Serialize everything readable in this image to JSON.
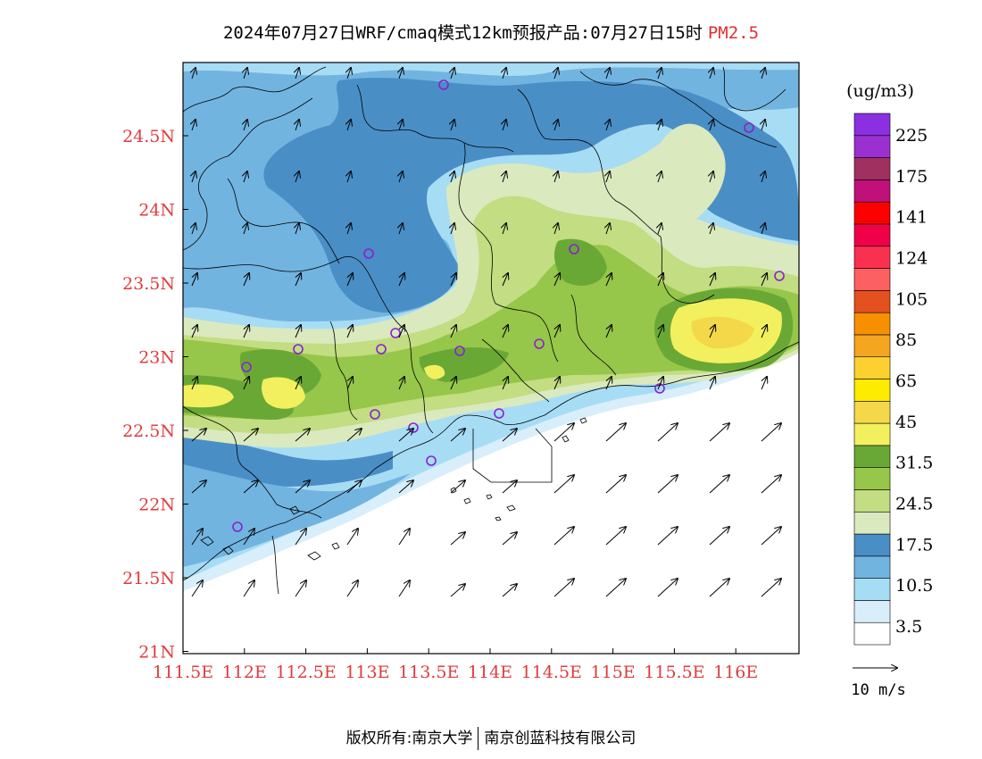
{
  "title": {
    "main": "2024年07月27日WRF/cmaq模式12km预报产品:07月27日15时",
    "species": "PM2.5"
  },
  "map": {
    "lat_labels": [
      "24.5N",
      "24N",
      "23.5N",
      "23N",
      "22.5N",
      "22N",
      "21.5N",
      "21N"
    ],
    "lon_labels": [
      "111.5E",
      "112E",
      "112.5E",
      "113E",
      "113.5E",
      "114E",
      "114.5E",
      "115E",
      "115.5E",
      "116E"
    ],
    "colors": {
      "c_lightblue": "#a7dcf5",
      "c_midblue": "#72b4e0",
      "c_darkblue": "#4a8ec6",
      "c_palegreen": "#dbe9bf",
      "c_lightgreen": "#c2dd82",
      "c_green": "#96c64a",
      "c_darkgreen": "#6aa836",
      "c_yellow": "#f2f05e",
      "c_gold": "#f4d84a"
    }
  },
  "legend": {
    "unit": "(ug/m3)",
    "labels": [
      "225",
      "175",
      "141",
      "124",
      "105",
      "85",
      "65",
      "45",
      "31.5",
      "24.5",
      "17.5",
      "10.5",
      "3.5"
    ],
    "colors": [
      "#ffffff",
      "#d8eefa",
      "#a7dcf5",
      "#72b4e0",
      "#4a8ec6",
      "#dbe9bf",
      "#c2dd82",
      "#96c64a",
      "#6aa836",
      "#f2f05e",
      "#f4d84a",
      "#fdeb00",
      "#fcd030",
      "#f4a620",
      "#f79000",
      "#e45020",
      "#fc6060",
      "#fa3050",
      "#f00048",
      "#fc0000",
      "#c0107a",
      "#a03060",
      "#9b30d0",
      "#8a30e0"
    ],
    "wind_reference": "10 m/s"
  },
  "footer": {
    "left": "版权所有:南京大学",
    "right": "南京创蓝科技有限公司"
  }
}
